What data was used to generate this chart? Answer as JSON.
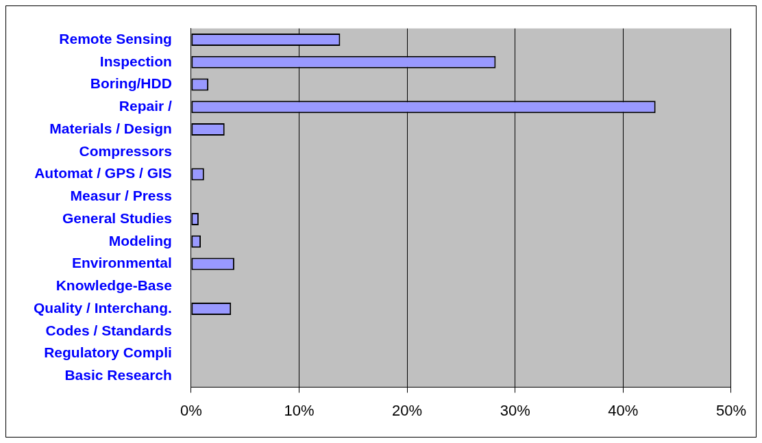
{
  "chart_data": {
    "type": "bar",
    "orientation": "horizontal",
    "categories": [
      "Remote Sensing",
      "Inspection",
      "Boring/HDD",
      "Repair /",
      "Materials / Design",
      "Compressors",
      "Automat / GPS / GIS",
      "Measur / Press",
      "General Studies",
      "Modeling",
      "Environmental",
      "Knowledge-Base",
      "Quality / Interchang.",
      "Codes / Standards",
      "Regulatory Compli",
      "Basic Research"
    ],
    "values": [
      13.8,
      28.2,
      1.6,
      43.0,
      3.1,
      0,
      1.2,
      0,
      0.7,
      0.9,
      4.0,
      0,
      3.7,
      0,
      0,
      0
    ],
    "color": "#9999ff",
    "xlim": [
      0,
      50
    ],
    "xticks": [
      {
        "value": 0,
        "label": "0%"
      },
      {
        "value": 10,
        "label": "10%"
      },
      {
        "value": 20,
        "label": "20%"
      },
      {
        "value": 30,
        "label": "30%"
      },
      {
        "value": 40,
        "label": "40%"
      },
      {
        "value": 50,
        "label": "50%"
      }
    ],
    "grid": "x",
    "legend": false
  }
}
